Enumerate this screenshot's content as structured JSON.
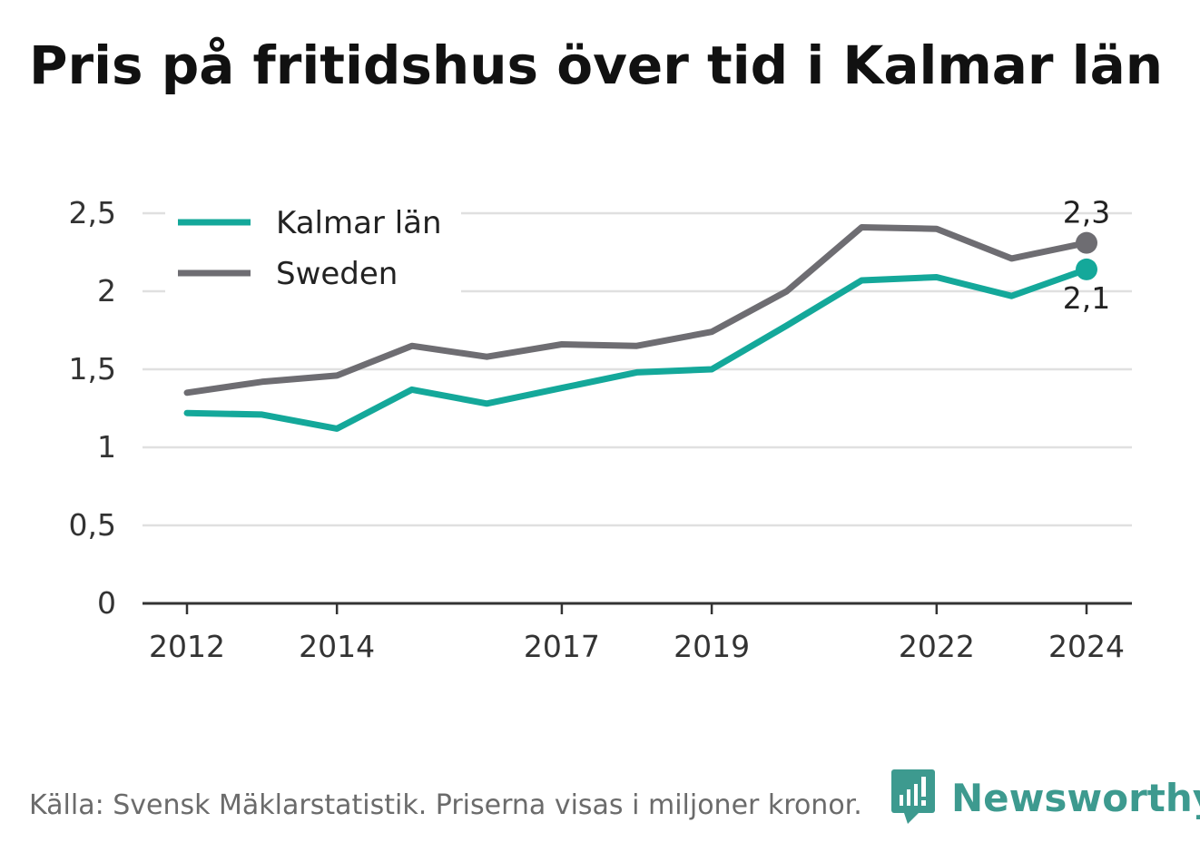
{
  "title": "Pris på fritidshus över tid i Kalmar län",
  "source": "Källa: Svensk Mäklarstatistik. Priserna visas i miljoner kronor.",
  "brand": "Newsworthy",
  "colors": {
    "kalmar": "#14a89a",
    "sweden": "#6e6d72",
    "grid": "#e0e0e0",
    "axis": "#333333"
  },
  "chart_data": {
    "type": "line",
    "x": [
      2012,
      2013,
      2014,
      2015,
      2016,
      2017,
      2018,
      2019,
      2020,
      2021,
      2022,
      2023,
      2024
    ],
    "x_ticks": [
      "2012",
      "2014",
      "2017",
      "2019",
      "2022",
      "2024"
    ],
    "y_ticks": [
      "0",
      "0,5",
      "1",
      "1,5",
      "2",
      "2,5"
    ],
    "ylim": [
      0,
      2.5
    ],
    "grid": true,
    "legend_position": "top-left",
    "series": [
      {
        "name": "Kalmar län",
        "color": "#14a89a",
        "end_label": "2,1",
        "values": [
          1.22,
          1.21,
          1.12,
          1.37,
          1.28,
          1.38,
          1.48,
          1.5,
          1.78,
          2.07,
          2.09,
          1.97,
          2.14
        ]
      },
      {
        "name": "Sweden",
        "color": "#6e6d72",
        "end_label": "2,3",
        "values": [
          1.35,
          1.42,
          1.46,
          1.65,
          1.58,
          1.66,
          1.65,
          1.74,
          2.0,
          2.41,
          2.4,
          2.21,
          2.31
        ]
      }
    ]
  }
}
